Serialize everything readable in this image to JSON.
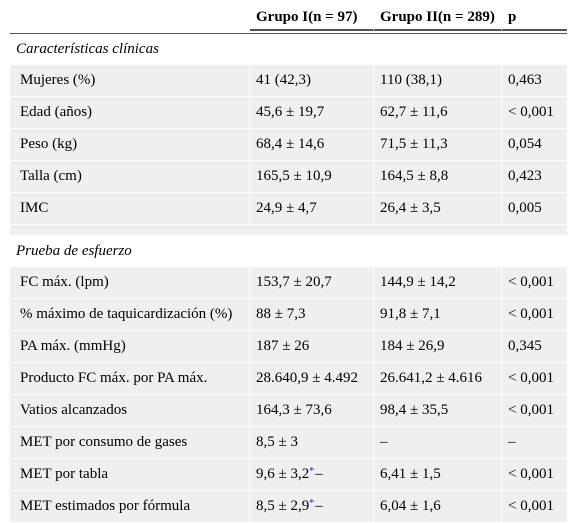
{
  "headers": [
    "",
    "Grupo I(n = 97)",
    "Grupo II(n = 289)",
    "p"
  ],
  "sections": [
    {
      "title": "Características clínicas",
      "rows": [
        {
          "label": "Mujeres (%)",
          "g1": "41 (42,3)",
          "g2": "110 (38,1)",
          "p": "0,463"
        },
        {
          "label": "Edad (años)",
          "g1": "45,6 ± 19,7",
          "g2": "62,7 ± 11,6",
          "p": "< 0,001"
        },
        {
          "label": "Peso (kg)",
          "g1": "68,4 ± 14,6",
          "g2": "71,5 ± 11,3",
          "p": "0,054"
        },
        {
          "label": "Talla (cm)",
          "g1": "165,5 ± 10,9",
          "g2": "164,5 ± 8,8",
          "p": "0,423"
        },
        {
          "label": "IMC",
          "g1": "24,9 ± 4,7",
          "g2": "26,4 ± 3,5",
          "p": "0,005"
        }
      ]
    },
    {
      "title": "Prueba de esfuerzo",
      "rows": [
        {
          "label": "FC máx. (lpm)",
          "g1": "153,7 ± 20,7",
          "g2": "144,9 ± 14,2",
          "p": "< 0,001"
        },
        {
          "label": "% máximo de taquicardización (%)",
          "g1": "88 ± 7,3",
          "g2": "91,8 ± 7,1",
          "p": "< 0,001"
        },
        {
          "label": "PA máx. (mmHg)",
          "g1": "187 ± 26",
          "g2": "184 ± 26,9",
          "p": "0,345"
        },
        {
          "label": "Producto FC máx. por PA máx.",
          "g1": "28.640,9 ± 4.492",
          "g2": "26.641,2 ± 4.616",
          "p": "< 0,001"
        },
        {
          "label": "Vatios alcanzados",
          "g1": "164,3 ± 73,6",
          "g2": "98,4 ± 35,5",
          "p": "< 0,001"
        },
        {
          "label": "MET por consumo de gases",
          "g1": "8,5 ± 3",
          "g2": "–",
          "p": "–"
        },
        {
          "label": "MET por tabla",
          "g1": "9,6 ± 3,2",
          "g1_note": "*",
          "g2": "6,41 ± 1,5",
          "p": "< 0,001"
        },
        {
          "label": "MET estimados por fórmula",
          "g1": "8,5 ± 2,9",
          "g1_note": "*",
          "g2": "6,04 ± 1,6",
          "p": "< 0,001"
        }
      ]
    }
  ],
  "footnote_marker_color": "#1a1ae6"
}
